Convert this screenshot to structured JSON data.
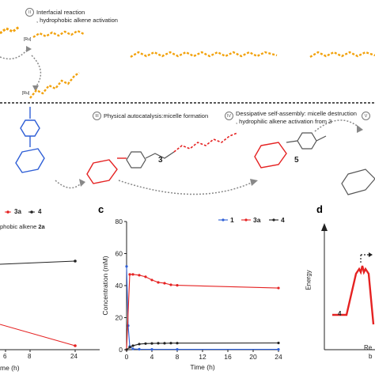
{
  "scheme": {
    "steps": [
      {
        "numeral": "II",
        "text": "Interfacial reaction",
        "subtext": ", hydrophobic alkene activation"
      },
      {
        "numeral": "III",
        "text": "Physical autocatalysis:micelle formation"
      },
      {
        "numeral": "IV",
        "text": "Dessipative self-assembly: micelle destruction",
        "subtext": ", hydrophilic alkene activation from 3"
      },
      {
        "numeral": "V"
      }
    ],
    "compounds": {
      "c3": "3",
      "c5": "5"
    },
    "ru_label": "[Ru]",
    "colors": {
      "orange": "#f2a20d",
      "blue": "#2f5fd6",
      "red": "#e52222",
      "gray": "#999999"
    }
  },
  "panel_b": {
    "legend_partial": [
      "3a",
      "4"
    ],
    "note_prefix": "phobic alkene ",
    "note_bold": "2a",
    "tick_labels": [
      "6",
      "8",
      "24"
    ],
    "xlabel_partial": "me (h)"
  },
  "panel_c": {
    "letter": "c"
  },
  "panel_d": {
    "letter": "d",
    "ylabel": "Energy",
    "point_label": "4",
    "text_partial_1": "Re",
    "text_partial_2": "b"
  },
  "chart_data": {
    "type": "line",
    "title": "",
    "xlabel": "Time (h)",
    "ylabel": "Concentration (mM)",
    "xlim": [
      0,
      24
    ],
    "ylim": [
      0,
      80
    ],
    "xticks": [
      0,
      4,
      8,
      12,
      16,
      20,
      24
    ],
    "yticks": [
      0,
      20,
      40,
      60,
      80
    ],
    "grid": false,
    "legend_position": "top-right",
    "series": [
      {
        "name": "1",
        "color": "#2f5fd6",
        "x": [
          0,
          0.25,
          0.5,
          1,
          2,
          4,
          8,
          24
        ],
        "y": [
          52,
          15,
          2,
          0.5,
          0.3,
          0.2,
          0.2,
          0.2
        ]
      },
      {
        "name": "3a",
        "color": "#e52222",
        "x": [
          0,
          0.5,
          1,
          2,
          3,
          4,
          5,
          6,
          7,
          8,
          24
        ],
        "y": [
          0,
          47,
          47,
          46.5,
          45.5,
          43.5,
          42,
          41.5,
          40.5,
          40.2,
          38.5
        ]
      },
      {
        "name": "4",
        "color": "#222222",
        "x": [
          0,
          0.5,
          1,
          2,
          3,
          4,
          5,
          6,
          7,
          8,
          24
        ],
        "y": [
          0,
          1.5,
          2.5,
          3.5,
          3.8,
          3.9,
          4,
          4,
          4.1,
          4.1,
          4.2
        ]
      }
    ]
  }
}
